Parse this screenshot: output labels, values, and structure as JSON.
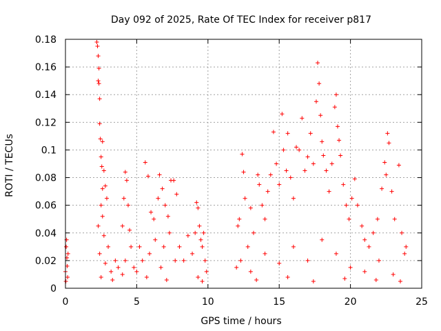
{
  "chart_data": {
    "type": "scatter",
    "title": "Day 092 of 2025, Rate Of TEC Index for receiver p817",
    "xlabel": "GPS time / hours",
    "ylabel": "ROTI / TECUs",
    "xlim": [
      0,
      25
    ],
    "ylim": [
      0,
      0.18
    ],
    "xticks": [
      0,
      5,
      10,
      15,
      20,
      25
    ],
    "yticks": [
      0,
      0.02,
      0.04,
      0.06,
      0.08,
      0.1,
      0.12,
      0.14,
      0.16,
      0.18
    ],
    "xtick_labels": [
      "0",
      "5",
      "10",
      "15",
      "20",
      "25"
    ],
    "ytick_labels": [
      "0",
      "0.02",
      "0.04",
      "0.06",
      "0.08",
      "0.1",
      "0.12",
      "0.14",
      "0.16",
      "0.18"
    ],
    "grid": true,
    "marker": "+",
    "marker_color": "#ff0000",
    "points": [
      [
        0.0,
        0.012
      ],
      [
        0.05,
        0.03
      ],
      [
        0.1,
        0.022
      ],
      [
        0.15,
        0.008
      ],
      [
        0.08,
        0.035
      ],
      [
        0.12,
        0.016
      ],
      [
        0.03,
        0.005
      ],
      [
        0.18,
        0.025
      ],
      [
        2.2,
        0.178
      ],
      [
        2.25,
        0.175
      ],
      [
        2.3,
        0.168
      ],
      [
        2.35,
        0.159
      ],
      [
        2.3,
        0.15
      ],
      [
        2.35,
        0.148
      ],
      [
        2.4,
        0.137
      ],
      [
        2.4,
        0.119
      ],
      [
        2.45,
        0.108
      ],
      [
        2.6,
        0.106
      ],
      [
        2.5,
        0.095
      ],
      [
        2.55,
        0.088
      ],
      [
        2.7,
        0.085
      ],
      [
        2.6,
        0.072
      ],
      [
        2.8,
        0.074
      ],
      [
        2.5,
        0.06
      ],
      [
        2.9,
        0.065
      ],
      [
        2.3,
        0.045
      ],
      [
        2.7,
        0.038
      ],
      [
        3.0,
        0.03
      ],
      [
        2.4,
        0.025
      ],
      [
        2.8,
        0.018
      ],
      [
        3.2,
        0.012
      ],
      [
        2.5,
        0.008
      ],
      [
        3.5,
        0.02
      ],
      [
        3.7,
        0.015
      ],
      [
        3.3,
        0.006
      ],
      [
        2.6,
        0.052
      ],
      [
        4.2,
        0.084
      ],
      [
        4.3,
        0.078
      ],
      [
        4.1,
        0.065
      ],
      [
        4.4,
        0.06
      ],
      [
        4.0,
        0.045
      ],
      [
        4.5,
        0.042
      ],
      [
        4.6,
        0.03
      ],
      [
        4.2,
        0.02
      ],
      [
        4.8,
        0.015
      ],
      [
        4.0,
        0.01
      ],
      [
        5.0,
        0.012
      ],
      [
        5.2,
        0.03
      ],
      [
        5.4,
        0.02
      ],
      [
        5.6,
        0.091
      ],
      [
        5.8,
        0.081
      ],
      [
        6.0,
        0.055
      ],
      [
        6.2,
        0.05
      ],
      [
        6.5,
        0.065
      ],
      [
        6.6,
        0.082
      ],
      [
        6.8,
        0.072
      ],
      [
        7.0,
        0.06
      ],
      [
        7.2,
        0.052
      ],
      [
        7.4,
        0.078
      ],
      [
        7.6,
        0.078
      ],
      [
        7.8,
        0.068
      ],
      [
        6.3,
        0.035
      ],
      [
        6.9,
        0.03
      ],
      [
        7.3,
        0.04
      ],
      [
        5.9,
        0.025
      ],
      [
        6.7,
        0.015
      ],
      [
        7.7,
        0.02
      ],
      [
        8.0,
        0.03
      ],
      [
        8.3,
        0.02
      ],
      [
        8.6,
        0.038
      ],
      [
        8.9,
        0.025
      ],
      [
        5.7,
        0.008
      ],
      [
        7.1,
        0.006
      ],
      [
        9.2,
        0.062
      ],
      [
        9.3,
        0.058
      ],
      [
        9.4,
        0.045
      ],
      [
        9.1,
        0.04
      ],
      [
        9.5,
        0.035
      ],
      [
        9.6,
        0.03
      ],
      [
        9.7,
        0.04
      ],
      [
        9.8,
        0.02
      ],
      [
        9.9,
        0.012
      ],
      [
        9.3,
        0.008
      ],
      [
        9.6,
        0.005
      ],
      [
        12.0,
        0.015
      ],
      [
        12.1,
        0.045
      ],
      [
        12.2,
        0.05
      ],
      [
        12.4,
        0.097
      ],
      [
        12.5,
        0.084
      ],
      [
        12.6,
        0.065
      ],
      [
        12.8,
        0.03
      ],
      [
        13.0,
        0.058
      ],
      [
        13.2,
        0.04
      ],
      [
        13.5,
        0.082
      ],
      [
        13.6,
        0.075
      ],
      [
        13.8,
        0.06
      ],
      [
        14.0,
        0.05
      ],
      [
        14.2,
        0.07
      ],
      [
        14.4,
        0.082
      ],
      [
        14.6,
        0.113
      ],
      [
        14.8,
        0.09
      ],
      [
        15.0,
        0.075
      ],
      [
        15.2,
        0.126
      ],
      [
        15.3,
        0.1
      ],
      [
        15.5,
        0.085
      ],
      [
        15.6,
        0.112
      ],
      [
        15.8,
        0.08
      ],
      [
        16.0,
        0.065
      ],
      [
        16.2,
        0.102
      ],
      [
        16.4,
        0.1
      ],
      [
        16.6,
        0.123
      ],
      [
        16.8,
        0.085
      ],
      [
        17.0,
        0.095
      ],
      [
        17.2,
        0.112
      ],
      [
        17.4,
        0.09
      ],
      [
        17.6,
        0.135
      ],
      [
        17.7,
        0.163
      ],
      [
        17.8,
        0.148
      ],
      [
        17.9,
        0.125
      ],
      [
        18.0,
        0.106
      ],
      [
        18.1,
        0.096
      ],
      [
        18.3,
        0.085
      ],
      [
        18.5,
        0.07
      ],
      [
        18.7,
        0.09
      ],
      [
        18.9,
        0.131
      ],
      [
        19.0,
        0.14
      ],
      [
        19.1,
        0.117
      ],
      [
        19.2,
        0.107
      ],
      [
        19.3,
        0.096
      ],
      [
        19.5,
        0.075
      ],
      [
        19.7,
        0.06
      ],
      [
        19.9,
        0.05
      ],
      [
        20.1,
        0.065
      ],
      [
        20.3,
        0.079
      ],
      [
        20.5,
        0.06
      ],
      [
        20.8,
        0.045
      ],
      [
        21.0,
        0.035
      ],
      [
        21.3,
        0.03
      ],
      [
        21.6,
        0.04
      ],
      [
        21.9,
        0.05
      ],
      [
        22.2,
        0.072
      ],
      [
        22.4,
        0.091
      ],
      [
        22.5,
        0.082
      ],
      [
        22.6,
        0.112
      ],
      [
        22.7,
        0.105
      ],
      [
        22.9,
        0.07
      ],
      [
        23.1,
        0.05
      ],
      [
        23.4,
        0.089
      ],
      [
        23.6,
        0.04
      ],
      [
        23.8,
        0.025
      ],
      [
        23.9,
        0.03
      ],
      [
        12.3,
        0.02
      ],
      [
        13.0,
        0.012
      ],
      [
        14.0,
        0.025
      ],
      [
        15.0,
        0.018
      ],
      [
        16.0,
        0.03
      ],
      [
        17.0,
        0.02
      ],
      [
        18.0,
        0.035
      ],
      [
        19.0,
        0.025
      ],
      [
        20.0,
        0.015
      ],
      [
        21.0,
        0.012
      ],
      [
        22.0,
        0.02
      ],
      [
        23.0,
        0.01
      ],
      [
        13.4,
        0.006
      ],
      [
        15.6,
        0.008
      ],
      [
        17.4,
        0.005
      ],
      [
        19.6,
        0.007
      ],
      [
        21.8,
        0.006
      ],
      [
        23.5,
        0.005
      ]
    ]
  }
}
